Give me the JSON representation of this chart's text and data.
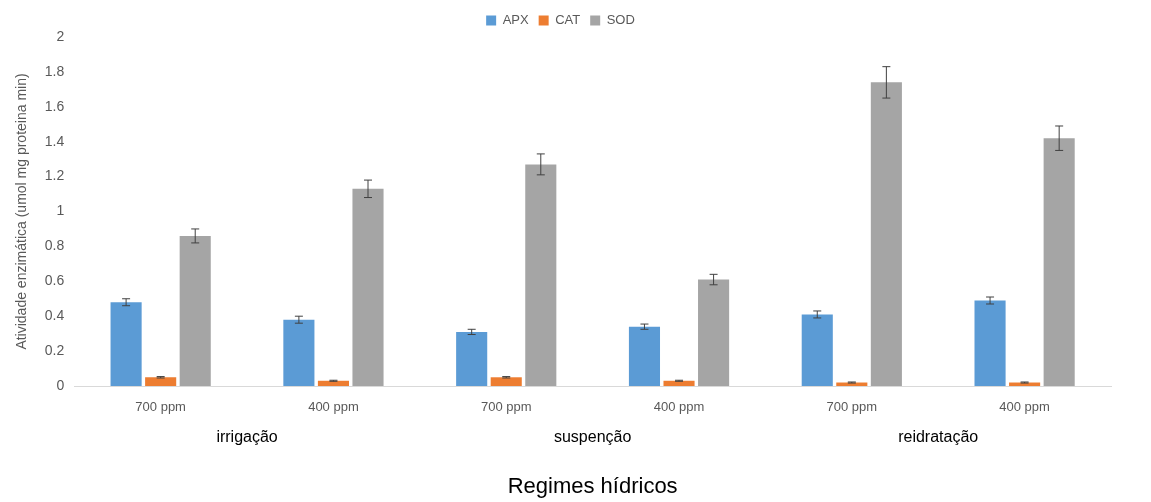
{
  "chart_data": {
    "type": "bar",
    "xlabel": "Regimes hídricos",
    "ylabel": "Atividade enzimática (umol mg proteina min)",
    "categories": [
      "700 ppm",
      "400 ppm",
      "700 ppm",
      "400 ppm",
      "700 ppm",
      "400 ppm"
    ],
    "series": [
      {
        "name": "APX",
        "color": "#5b9bd5",
        "values": [
          0.48,
          0.38,
          0.31,
          0.34,
          0.41,
          0.49
        ],
        "errors": [
          0.02,
          0.02,
          0.015,
          0.015,
          0.02,
          0.02
        ]
      },
      {
        "name": "CAT",
        "color": "#ed7d31",
        "values": [
          0.05,
          0.03,
          0.05,
          0.03,
          0.02,
          0.02
        ],
        "errors": [
          0.004,
          0.003,
          0.004,
          0.003,
          0.003,
          0.003
        ]
      },
      {
        "name": "SOD",
        "color": "#a5a5a5",
        "values": [
          0.86,
          1.13,
          1.27,
          0.61,
          1.74,
          1.42
        ],
        "errors": [
          0.04,
          0.05,
          0.06,
          0.03,
          0.09,
          0.07
        ]
      }
    ],
    "annotations": [
      "irrigação",
      "suspenção",
      "reidratação"
    ],
    "ylim": [
      0,
      2
    ],
    "yticks": [
      0,
      0.2,
      0.4,
      0.6,
      0.8,
      1,
      1.2,
      1.4,
      1.6,
      1.8,
      2
    ],
    "grid": false,
    "legend": "top"
  }
}
